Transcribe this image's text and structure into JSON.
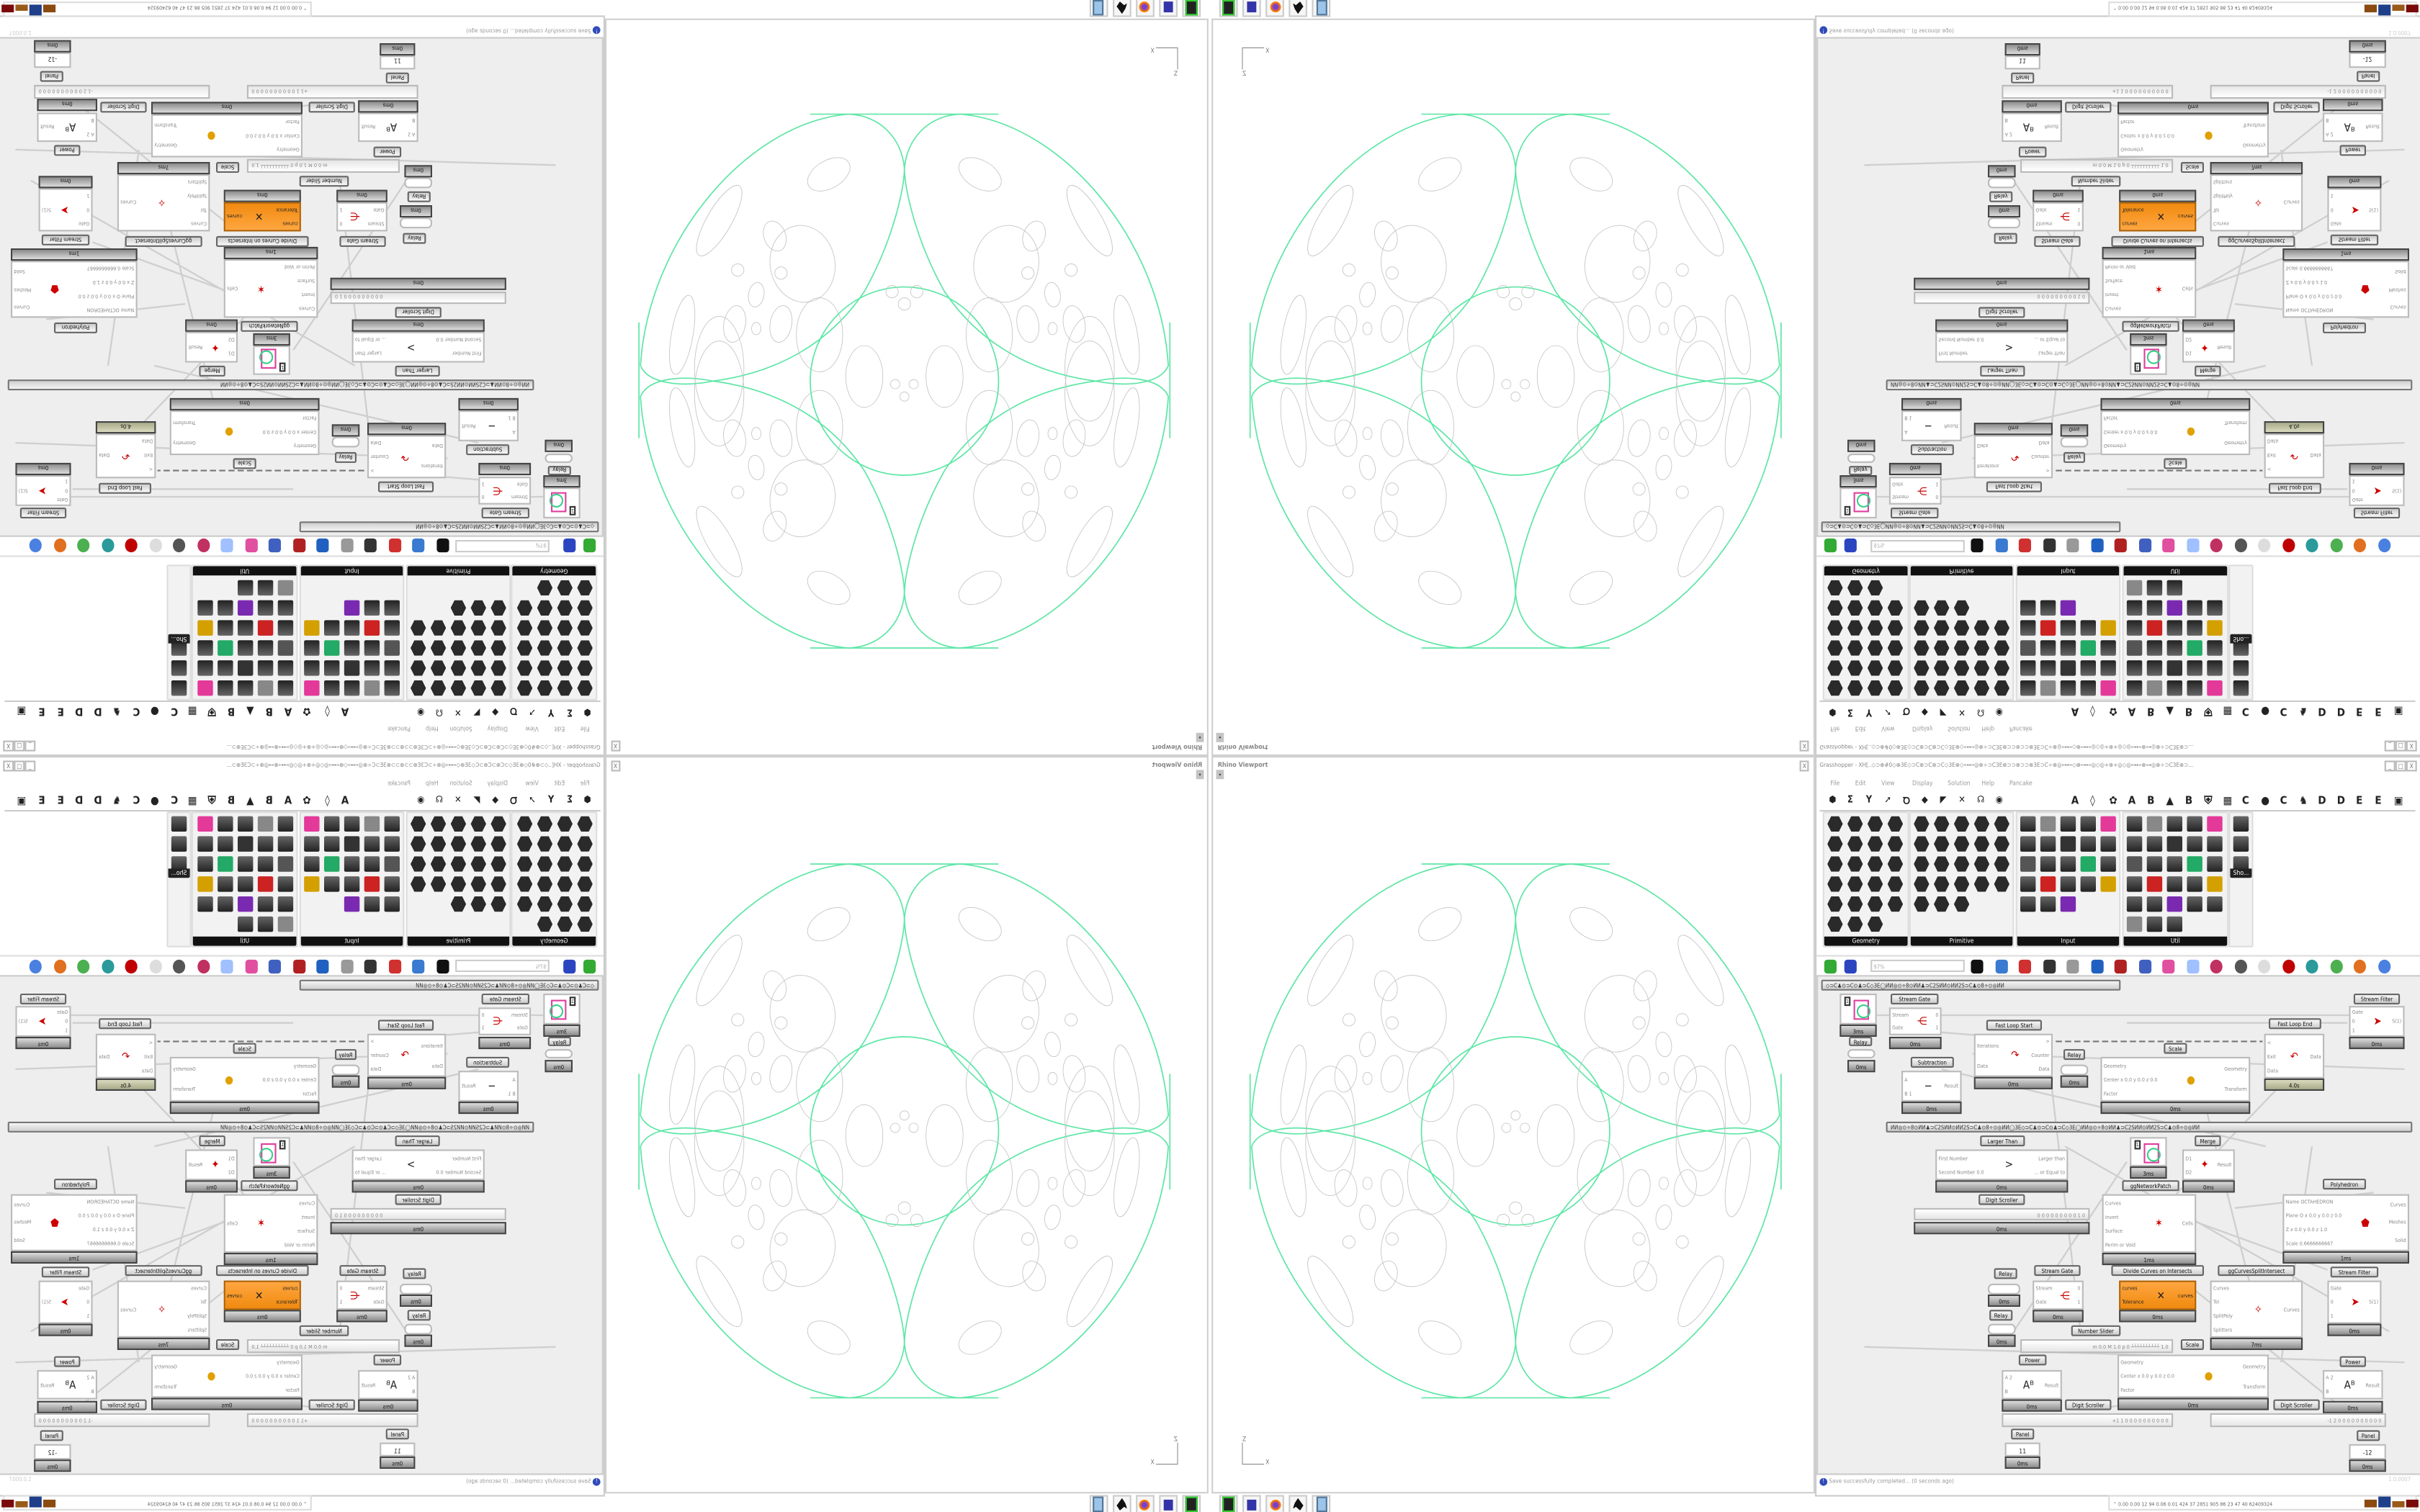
{
  "viewport": {
    "title": "Rhino Viewport",
    "close_label": "X",
    "dropdown_icon": "▾",
    "axis_vertical": "Z",
    "axis_horizontal": "X",
    "curve_color": "#5fe6a6",
    "detail_color": "#c4c4c4"
  },
  "taskbar": {
    "icons": [
      "terminal-icon",
      "floppy-64-icon",
      "firefox-icon",
      "inkscape-icon",
      "calculator-icon"
    ]
  },
  "gh": {
    "title": "Grasshopper - XH[..◇⊃⊕#0◇⊕3E◇⊃C⊗⊃C⊗⊃C◇3E⊕◇⊶⊷◎⊕÷⊃C3E⊗⊃⊃⊗⊃⊃⊗3E⊃C÷⊕◎⊶⊷◇⊕⊶⊷◎◇◎+⊕+◎◇◎⊶⊷⊕⊶◎⊕÷⊃C3E⊗⊃...",
    "window_controls": [
      "_",
      "□",
      "X"
    ],
    "menu": [
      "File",
      "Edit",
      "View",
      "Display",
      "Solution",
      "Help",
      "Pancake"
    ],
    "tab_icons": [
      "⬢",
      "Σ",
      "Y",
      "➚",
      "Ꝺ",
      "◆",
      "◤",
      "✕",
      "☊",
      "◉"
    ],
    "tab_letters": [
      "A",
      "◊",
      "✿",
      "A",
      "B",
      "▲",
      "B",
      "⛨",
      "▦",
      "C",
      "●",
      "C",
      "♞",
      "D",
      "D",
      "E",
      "E",
      "▣"
    ],
    "panels": [
      "Geometry",
      "Primitive",
      "Input",
      "Util",
      "Sho..."
    ],
    "zoom": "97%",
    "group_bars": [
      "◇⊃C♟⊙⊃C⊙♟⊃C◇3E◯ИИ◎⊙÷8⊙ИИ♟⊃C2SИИ⊙ИИ2S⊃C♟⊙8÷⊙◎ИИ",
      "ИИ◎⊙÷8⊙ИИ♟⊃C2SИИ⊙ИИ2S⊃C♟⊙8÷⊙◎ИИ◯3E◇⊃C♟⊙⊃C⊙♟⊃C◇3E◯ИИ◎⊙÷8⊙ИИ♟⊃C2SИИ⊙ИИ2S⊃C♟⊙8÷⊙◎ИИ"
    ],
    "canvas": {
      "nodes": [
        {
          "kind": "preview",
          "value": "1",
          "time": "3ms"
        },
        {
          "kind": "relay",
          "label": "Relay",
          "time": "0ms"
        },
        {
          "label": "Stream Gate",
          "inputs": [
            "Stream",
            "Gate"
          ],
          "outputs": [
            "0",
            "1"
          ],
          "icon": "stream-gate-icon",
          "time": "0ms"
        },
        {
          "label": "Subtraction",
          "inputs": [
            "A",
            "B  1"
          ],
          "outputs": [
            "Result"
          ],
          "icon": "minus-icon",
          "time": "0ms"
        },
        {
          "label": "Fast Loop Start",
          "inputs": [
            "Iterations",
            "Data"
          ],
          "outputs": [
            ">",
            "Counter",
            "Data"
          ],
          "icon": "loop-start-icon",
          "time": "0ms"
        },
        {
          "kind": "relay",
          "label": "Relay",
          "time": "0ms"
        },
        {
          "label": "Scale",
          "inputs": [
            "Geometry",
            "Center x 0.0 y 0.0 z 0.0",
            "Factor"
          ],
          "outputs": [
            "Geometry",
            "Transform"
          ],
          "icon": "scale-icon",
          "time": "0ms"
        },
        {
          "label": "Fast Loop End",
          "inputs": [
            "<",
            "Exit",
            "Data"
          ],
          "outputs": [
            "Data"
          ],
          "icon": "loop-end-icon",
          "time": "4.0s"
        },
        {
          "label": "Stream Filter",
          "inputs": [
            "Gate",
            "0",
            "1"
          ],
          "outputs": [
            "S(1)"
          ],
          "icon": "stream-filter-icon",
          "time": "0ms"
        },
        {
          "label": "Larger Than",
          "inputs": [
            "First Number",
            "Second Number 0.0"
          ],
          "outputs": [
            "Larger than",
            "... or Equal to"
          ],
          "icon": "larger-than-icon",
          "time": "0ms"
        },
        {
          "kind": "scroller",
          "label": "Digit Scroller",
          "value": "0 0 0 0 0 0 0 0 0 1 0",
          "time": "0ms"
        },
        {
          "kind": "preview",
          "value": "1",
          "time": "3ms"
        },
        {
          "label": "ggNetworkPatch",
          "inputs": [
            "Curves",
            "Invert",
            "Surface",
            "Perim or Void"
          ],
          "outputs": [
            "Cells"
          ],
          "icon": "network-patch-icon",
          "time": "1ms"
        },
        {
          "label": "Merge",
          "inputs": [
            "D1",
            "D2"
          ],
          "outputs": [
            "Result"
          ],
          "icon": "merge-icon",
          "time": "0ms"
        },
        {
          "label": "Polyhedron",
          "inputs": [
            "Name  OCTAHEDRON",
            "Plane  O x 0.0 y 0.0 z 0.0",
            "Z x 0.0 y 0.0 z 1.0",
            "Scale  0.6666666667"
          ],
          "outputs": [
            "Curves",
            "Meshes",
            "Solid"
          ],
          "icon": "polyhedron-icon",
          "time": "1ms"
        },
        {
          "kind": "relay",
          "label": "Relay",
          "time": "0ms"
        },
        {
          "kind": "relay",
          "label": "Relay",
          "time": "0ms"
        },
        {
          "label": "Stream Gate",
          "inputs": [
            "Stream",
            "Gate"
          ],
          "outputs": [
            "0",
            "1"
          ],
          "icon": "stream-gate-icon",
          "time": "0ms"
        },
        {
          "label": "Divide Curves on Intersects",
          "inputs": [
            "curves",
            "Tolerance"
          ],
          "outputs": [
            "curves"
          ],
          "icon": "divide-curves-icon",
          "time": "0ms",
          "highlight": "#f59a20"
        },
        {
          "label": "ggCurvesSplitIntersect",
          "inputs": [
            "Curves",
            "Tol",
            "SplitPoly",
            "Splitters"
          ],
          "outputs": [
            "Curves"
          ],
          "icon": "split-icon",
          "time": "7ms"
        },
        {
          "label": "Stream Filter",
          "inputs": [
            "Gate",
            "0",
            "1"
          ],
          "outputs": [
            "S(1)"
          ],
          "icon": "stream-filter-icon",
          "time": "0ms"
        },
        {
          "kind": "slider",
          "label": "Number Slider",
          "value": "m 0.0  M 1.0  p 0   ┴┴┴┴┴┴┴┴┴┴ 1.0"
        },
        {
          "label": "Scale",
          "inputs": [
            "Geometry",
            "Center x 0.0 y 0.0 z 0.0",
            "Factor"
          ],
          "outputs": [
            "Geometry",
            "Transform"
          ],
          "icon": "scale-icon",
          "time": "0ms",
          "tag": "Scale"
        },
        {
          "label": "Power",
          "inputs": [
            "A  2",
            "B"
          ],
          "outputs": [
            "Result"
          ],
          "icon": "power-icon",
          "time": "0ms"
        },
        {
          "label": "Power",
          "inputs": [
            "A  2",
            "B"
          ],
          "outputs": [
            "Result"
          ],
          "icon": "power-icon",
          "time": "0ms"
        },
        {
          "kind": "scroller",
          "label": "Digit Scroller",
          "value": "+1 1 0 0 0 0 0 0 0 0 0 0"
        },
        {
          "kind": "scroller",
          "label": "Digit Scroller",
          "value": "-1 2 0 0 0 0 0 0 0 0 0 0"
        },
        {
          "kind": "panel",
          "label": "Panel",
          "value": "11",
          "time": "0ms"
        },
        {
          "kind": "panel",
          "label": "Panel",
          "value": "-12",
          "time": "0ms"
        }
      ]
    },
    "status": "Save successfully completed... (0 seconds ago)",
    "version": "1.0.0007"
  },
  "tray": {
    "stats": "0.00 0.00  12   94  0.06 0.01  424  37  2851 905  86   23   47   40  62409324",
    "bar_colors": [
      "#8a4a10",
      "#1f3f8a",
      "#9a5a1a",
      "#7a0a0a"
    ]
  }
}
